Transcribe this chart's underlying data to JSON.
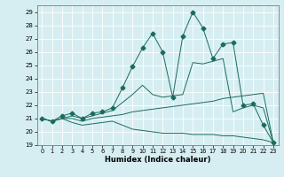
{
  "title": "",
  "xlabel": "Humidex (Indice chaleur)",
  "xlim": [
    -0.5,
    23.5
  ],
  "ylim": [
    19,
    29.5
  ],
  "yticks": [
    19,
    20,
    21,
    22,
    23,
    24,
    25,
    26,
    27,
    28,
    29
  ],
  "xticks": [
    0,
    1,
    2,
    3,
    4,
    5,
    6,
    7,
    8,
    9,
    10,
    11,
    12,
    13,
    14,
    15,
    16,
    17,
    18,
    19,
    20,
    21,
    22,
    23
  ],
  "bg_color": "#d6eef2",
  "grid_color": "#b8d8dc",
  "line_color": "#1a6b5e",
  "lines": [
    {
      "x": [
        0,
        1,
        2,
        3,
        4,
        5,
        6,
        7,
        8,
        9,
        10,
        11,
        12,
        13,
        14,
        15,
        16,
        17,
        18,
        19,
        20,
        21,
        22,
        23
      ],
      "y": [
        21.0,
        20.8,
        21.0,
        20.7,
        20.5,
        20.6,
        20.7,
        20.8,
        20.5,
        20.2,
        20.1,
        20.0,
        19.9,
        19.9,
        19.9,
        19.8,
        19.8,
        19.8,
        19.7,
        19.7,
        19.6,
        19.5,
        19.4,
        19.2
      ],
      "marker": null
    },
    {
      "x": [
        0,
        1,
        2,
        3,
        4,
        5,
        6,
        7,
        8,
        9,
        10,
        11,
        12,
        13,
        14,
        15,
        16,
        17,
        18,
        19,
        20,
        21,
        22,
        23
      ],
      "y": [
        21.0,
        20.8,
        21.0,
        21.0,
        20.8,
        21.0,
        21.1,
        21.2,
        21.3,
        21.5,
        21.6,
        21.7,
        21.8,
        21.9,
        22.0,
        22.1,
        22.2,
        22.3,
        22.5,
        22.6,
        22.7,
        22.8,
        22.9,
        19.2
      ],
      "marker": null
    },
    {
      "x": [
        0,
        1,
        2,
        3,
        4,
        5,
        6,
        7,
        8,
        9,
        10,
        11,
        12,
        13,
        14,
        15,
        16,
        17,
        18,
        19,
        20,
        21,
        22,
        23
      ],
      "y": [
        21.0,
        20.8,
        21.0,
        21.2,
        21.0,
        21.2,
        21.4,
        21.6,
        22.2,
        22.8,
        23.5,
        22.8,
        22.6,
        22.7,
        22.8,
        25.2,
        25.1,
        25.3,
        25.5,
        21.5,
        21.8,
        22.0,
        21.8,
        19.2
      ],
      "marker": null
    },
    {
      "x": [
        0,
        1,
        2,
        3,
        4,
        5,
        6,
        7,
        8,
        9,
        10,
        11,
        12,
        13,
        14,
        15,
        16,
        17,
        18,
        19,
        20,
        21,
        22,
        23
      ],
      "y": [
        21.0,
        20.8,
        21.2,
        21.4,
        21.0,
        21.4,
        21.5,
        21.8,
        23.3,
        24.9,
        26.3,
        27.4,
        26.0,
        22.6,
        27.2,
        29.0,
        27.8,
        25.5,
        26.6,
        26.7,
        22.0,
        22.1,
        20.5,
        19.2
      ],
      "marker": "D",
      "markersize": 2.5
    }
  ]
}
